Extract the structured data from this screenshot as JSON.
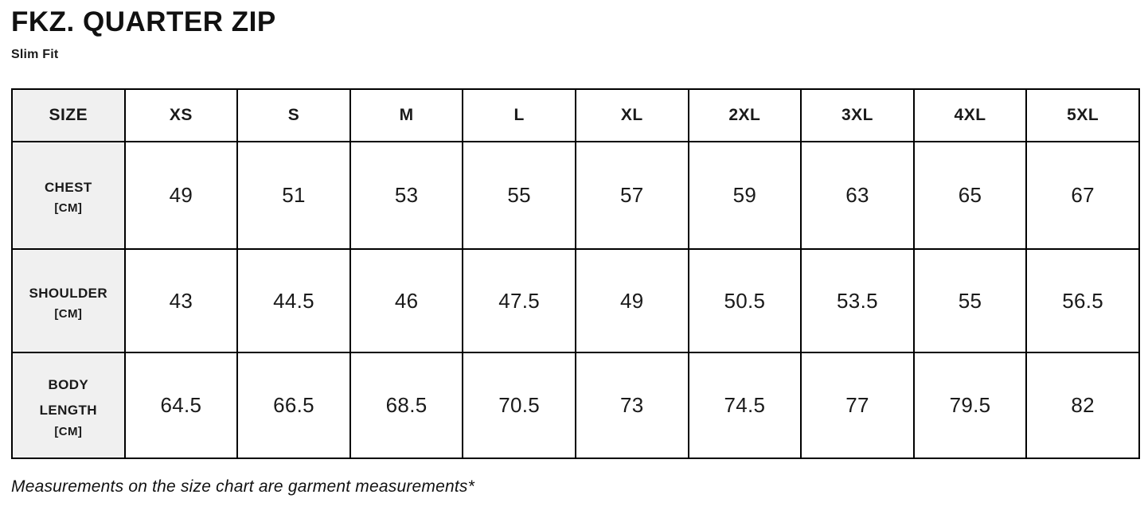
{
  "header": {
    "title": "FKZ. QUARTER ZIP",
    "subtitle": "Slim Fit"
  },
  "size_chart": {
    "corner_label": "SIZE",
    "columns": [
      "XS",
      "S",
      "M",
      "L",
      "XL",
      "2XL",
      "3XL",
      "4XL",
      "5XL"
    ],
    "rows": [
      {
        "label": "CHEST",
        "unit": "[CM]",
        "values": [
          "49",
          "51",
          "53",
          "55",
          "57",
          "59",
          "63",
          "65",
          "67"
        ]
      },
      {
        "label": "SHOULDER",
        "unit": "[CM]",
        "values": [
          "43",
          "44.5",
          "46",
          "47.5",
          "49",
          "50.5",
          "53.5",
          "55",
          "56.5"
        ]
      },
      {
        "label": "BODY LENGTH",
        "unit": "[CM]",
        "values": [
          "64.5",
          "66.5",
          "68.5",
          "70.5",
          "73",
          "74.5",
          "77",
          "79.5",
          "82"
        ]
      }
    ]
  },
  "footnote": "Measurements on the size chart are garment measurements*",
  "colors": {
    "text": "#1a1a1a",
    "border": "#000000",
    "label_background": "#f0f0f0",
    "page_background": "#ffffff"
  },
  "chart_data": {
    "type": "table",
    "title": "FKZ. QUARTER ZIP",
    "subtitle": "Slim Fit",
    "columns": [
      "SIZE",
      "XS",
      "S",
      "M",
      "L",
      "XL",
      "2XL",
      "3XL",
      "4XL",
      "5XL"
    ],
    "rows": [
      [
        "CHEST [CM]",
        49,
        51,
        53,
        55,
        57,
        59,
        63,
        65,
        67
      ],
      [
        "SHOULDER [CM]",
        43,
        44.5,
        46,
        47.5,
        49,
        50.5,
        53.5,
        55,
        56.5
      ],
      [
        "BODY LENGTH [CM]",
        64.5,
        66.5,
        68.5,
        70.5,
        73,
        74.5,
        77,
        79.5,
        82
      ]
    ],
    "footnote": "Measurements on the size chart are garment measurements*"
  }
}
